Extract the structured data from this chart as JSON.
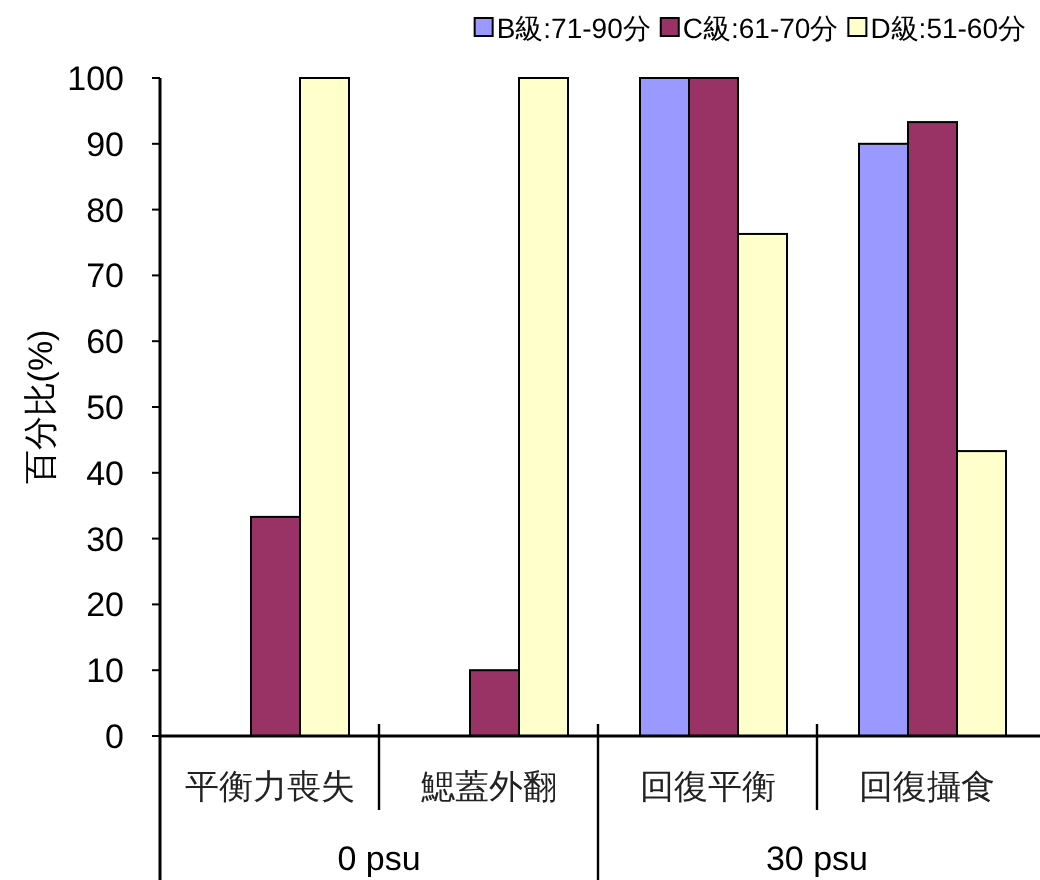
{
  "chart_data": {
    "type": "bar",
    "ylabel": "百分比(%)",
    "categories": [
      "平衡力喪失",
      "鰓蓋外翻",
      "回復平衡",
      "回復攝食"
    ],
    "series": [
      {
        "name": "B級:71-90分",
        "color": "#9999ff",
        "values": [
          0,
          0,
          100,
          90
        ]
      },
      {
        "name": "C級:61-70分",
        "color": "#993366",
        "values": [
          33.3,
          10,
          100,
          93.3
        ]
      },
      {
        "name": "D級:51-60分",
        "color": "#ffffcc",
        "values": [
          100,
          100,
          76.3,
          43.3
        ]
      }
    ],
    "ylim": [
      0,
      100
    ],
    "yticks": [
      0,
      10,
      20,
      30,
      40,
      50,
      60,
      70,
      80,
      90,
      100
    ],
    "grid": false,
    "legend": "top right",
    "annotations": [
      "0 psu",
      "30 psu"
    ]
  }
}
